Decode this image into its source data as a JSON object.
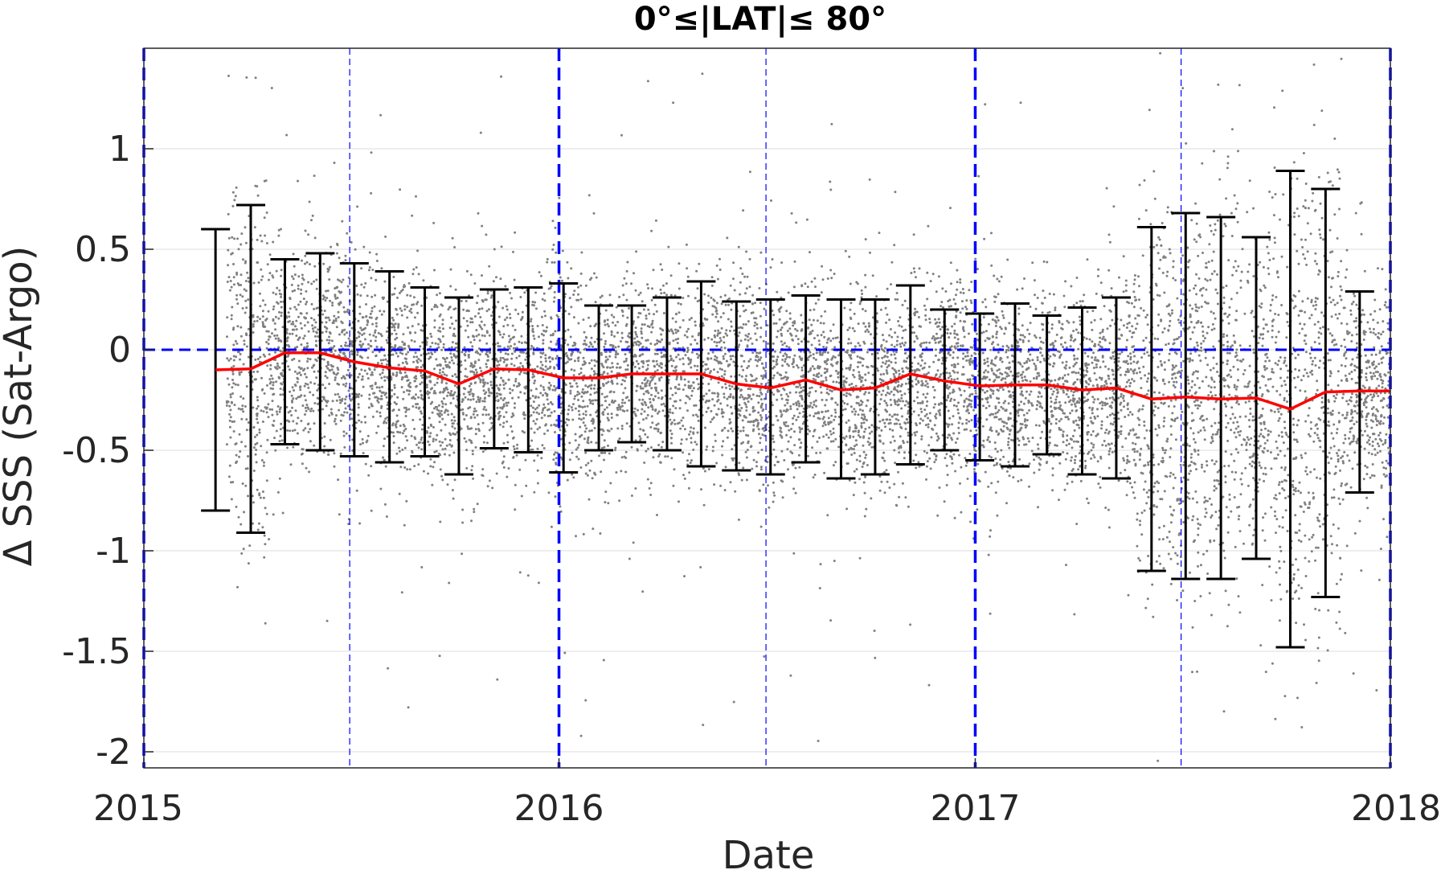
{
  "chart_data": {
    "type": "scatter",
    "title": "0°≤|LAT|≤ 80°",
    "xlabel": "Date",
    "ylabel": "Δ SSS (Sat-Argo)",
    "xlim": [
      "2015-01-01",
      "2018-01-01"
    ],
    "ylim": [
      -2.08,
      1.5
    ],
    "xticks": [
      {
        "date": "2015-01-01",
        "label": "2015"
      },
      {
        "date": "2016-01-01",
        "label": "2016"
      },
      {
        "date": "2017-01-01",
        "label": "2017"
      },
      {
        "date": "2018-01-01",
        "label": "2018"
      }
    ],
    "yticks": [
      {
        "value": 1,
        "label": "1"
      },
      {
        "value": 0.5,
        "label": "0.5"
      },
      {
        "value": 0,
        "label": "0"
      },
      {
        "value": -0.5,
        "label": "-0.5"
      },
      {
        "value": -1,
        "label": "-1"
      },
      {
        "value": -1.5,
        "label": "-1.5"
      },
      {
        "value": -2,
        "label": "-2"
      }
    ],
    "grid": "horizontal",
    "reference_lines": {
      "zero_line": 0,
      "year_lines": [
        "2015-01-01",
        "2016-01-01",
        "2017-01-01",
        "2018-01-01"
      ],
      "mid_year_lines": [
        "2015-07-01",
        "2016-07-01",
        "2017-07-01"
      ]
    },
    "scatter_cloud": {
      "date_range": [
        "2015-03-15",
        "2018-01-01"
      ],
      "mean_by_period": "follows the monthly mean",
      "color": "#808080"
    },
    "series": [
      {
        "x": [
          "2015-03-05",
          "2015-04-05",
          "2015-05-05",
          "2015-06-05",
          "2015-07-05",
          "2015-08-05",
          "2015-09-05",
          "2015-10-05",
          "2015-11-05",
          "2015-12-05",
          "2016-01-05",
          "2016-02-05",
          "2016-03-05",
          "2016-04-05",
          "2016-05-05",
          "2016-06-05",
          "2016-07-05",
          "2016-08-05",
          "2016-09-05",
          "2016-10-05",
          "2016-11-05",
          "2016-12-05",
          "2017-01-05",
          "2017-02-05",
          "2017-03-05",
          "2017-04-05",
          "2017-05-05",
          "2017-06-05",
          "2017-07-05",
          "2017-08-05",
          "2017-09-05",
          "2017-10-05",
          "2017-11-05",
          "2017-12-05"
        ],
        "mean": [
          -0.1,
          -0.095,
          -0.015,
          -0.015,
          -0.06,
          -0.09,
          -0.105,
          -0.17,
          -0.095,
          -0.1,
          -0.14,
          -0.14,
          -0.12,
          -0.12,
          -0.12,
          -0.17,
          -0.19,
          -0.15,
          -0.2,
          -0.19,
          -0.12,
          -0.155,
          -0.18,
          -0.175,
          -0.175,
          -0.2,
          -0.19,
          -0.245,
          -0.235,
          -0.245,
          -0.24,
          -0.295,
          -0.21,
          -0.205
        ],
        "upper": [
          0.6,
          0.72,
          0.45,
          0.48,
          0.43,
          0.39,
          0.31,
          0.26,
          0.3,
          0.31,
          0.33,
          0.22,
          0.22,
          0.26,
          0.34,
          0.24,
          0.25,
          0.27,
          0.25,
          0.25,
          0.32,
          0.2,
          0.18,
          0.23,
          0.17,
          0.21,
          0.26,
          0.61,
          0.68,
          0.66,
          0.56,
          0.89,
          0.8,
          0.29
        ],
        "lower": [
          -0.8,
          -0.91,
          -0.47,
          -0.5,
          -0.53,
          -0.56,
          -0.53,
          -0.62,
          -0.49,
          -0.51,
          -0.61,
          -0.5,
          -0.46,
          -0.5,
          -0.58,
          -0.6,
          -0.62,
          -0.56,
          -0.64,
          -0.62,
          -0.57,
          -0.5,
          -0.55,
          -0.58,
          -0.52,
          -0.62,
          -0.64,
          -1.1,
          -1.14,
          -1.14,
          -1.04,
          -1.48,
          -1.23,
          -0.71
        ],
        "line_color": "#ff0000",
        "errorbar_color": "#000000"
      }
    ]
  }
}
